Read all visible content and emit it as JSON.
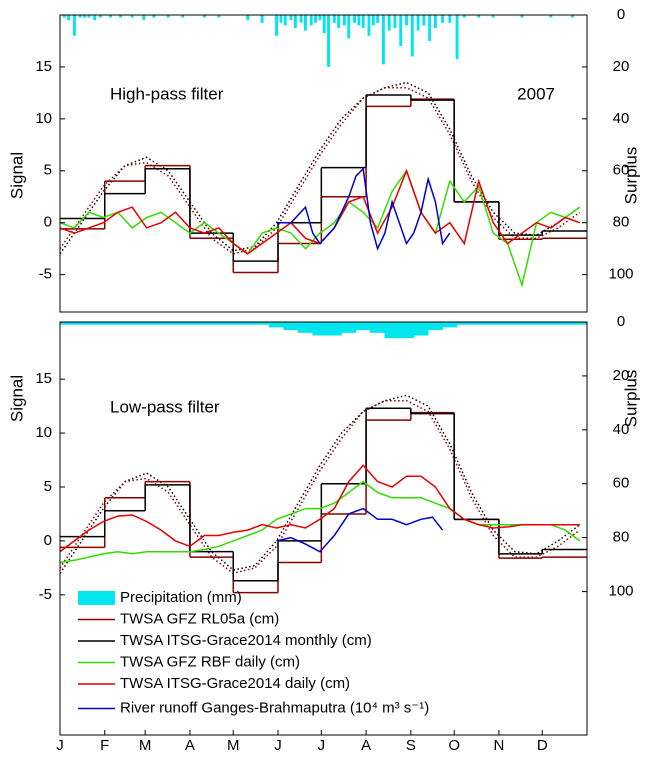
{
  "chart_data": [
    {
      "type": "line",
      "annotations": [
        "High-pass filter",
        "2007"
      ],
      "y_label": "Signal",
      "y2_label": "Surplus",
      "xlim": [
        0,
        365
      ],
      "ylim": [
        -8.6,
        20
      ],
      "yticks": [
        -5,
        0,
        5,
        10,
        15
      ],
      "y2lim": [
        0,
        114.4
      ],
      "y2_reversed": true,
      "y2ticks": [
        0,
        20,
        40,
        60,
        80,
        100
      ],
      "series": [
        {
          "style": "bar",
          "axis": "y2",
          "color": "#00e5ee",
          "x": [
            3,
            6,
            10,
            14,
            17,
            20,
            24,
            28,
            35,
            42,
            50,
            58,
            65,
            75,
            85,
            100,
            110,
            130,
            140,
            150,
            153,
            156,
            160,
            163,
            167,
            170,
            174,
            177,
            180,
            183,
            186,
            190,
            193,
            197,
            200,
            204,
            207,
            210,
            214,
            217,
            220,
            224,
            228,
            232,
            236,
            240,
            244,
            248,
            252,
            256,
            260,
            265,
            270,
            275,
            280,
            290,
            300,
            320,
            340,
            355
          ],
          "values": [
            1,
            2,
            8,
            1,
            1,
            1,
            2,
            1,
            1,
            1,
            1,
            2,
            1,
            1,
            1,
            1,
            1,
            2,
            3,
            8,
            3,
            4,
            2,
            5,
            3,
            6,
            4,
            3,
            2,
            7,
            20,
            3,
            5,
            4,
            9,
            3,
            4,
            5,
            8,
            4,
            3,
            19,
            6,
            5,
            12,
            4,
            16,
            6,
            4,
            10,
            5,
            3,
            3,
            17,
            1,
            1,
            1,
            1,
            1,
            1
          ]
        },
        {
          "style": "dotted",
          "color": "#000000",
          "x": [
            0,
            15,
            30,
            45,
            60,
            75,
            90,
            105,
            120,
            135,
            150,
            165,
            180,
            195,
            210,
            225,
            240,
            255,
            270,
            285,
            300,
            315,
            330,
            345,
            360
          ],
          "values": [
            -3,
            0,
            3,
            5.5,
            6.3,
            5,
            2,
            -1,
            -2.7,
            -2.3,
            0,
            3.5,
            7,
            10,
            12,
            13,
            13.5,
            12.5,
            9,
            4.5,
            1,
            -1,
            -1.2,
            0,
            1.5
          ]
        },
        {
          "style": "dotted",
          "color": "#8b0000",
          "x": [
            0,
            15,
            30,
            45,
            60,
            75,
            90,
            105,
            120,
            135,
            150,
            165,
            180,
            195,
            210,
            225,
            240,
            255,
            270,
            285,
            300,
            315,
            330,
            345,
            360
          ],
          "values": [
            -2.5,
            0.5,
            3.5,
            5.5,
            5.8,
            4.5,
            1.5,
            -1.5,
            -3,
            -2.5,
            -0.5,
            3,
            6.5,
            9.5,
            12,
            13,
            13,
            12,
            8.5,
            4,
            0.5,
            -1.5,
            -1.5,
            -0.5,
            1
          ]
        },
        {
          "style": "step",
          "color": "#8b0000",
          "x": [
            0,
            31,
            59,
            90,
            120,
            151,
            181,
            212,
            243,
            273,
            304,
            334
          ],
          "values": [
            -0.6,
            4,
            5.5,
            -1.5,
            -4.8,
            -2,
            2.5,
            11.2,
            11.9,
            2,
            -1.6,
            -1.5
          ]
        },
        {
          "style": "step",
          "color": "#000000",
          "x": [
            0,
            31,
            59,
            90,
            120,
            151,
            181,
            212,
            243,
            273,
            304,
            334
          ],
          "values": [
            0.4,
            2.8,
            5.2,
            -1,
            -3.7,
            0,
            5.3,
            12.3,
            11.8,
            2,
            -1.2,
            -0.8
          ]
        },
        {
          "style": "line",
          "color": "#33dd00",
          "x": [
            0,
            10,
            20,
            30,
            40,
            50,
            60,
            70,
            80,
            90,
            100,
            110,
            120,
            130,
            140,
            150,
            160,
            170,
            180,
            190,
            200,
            210,
            220,
            230,
            240,
            250,
            260,
            270,
            280,
            290,
            300,
            310,
            320,
            330,
            340,
            350,
            360
          ],
          "values": [
            0,
            -0.5,
            1,
            0.5,
            1,
            -0.5,
            0.5,
            1,
            0,
            -1,
            0,
            -1,
            -2,
            -3,
            -1,
            -0.5,
            -1,
            -2.5,
            -1,
            0,
            2,
            1,
            -0.5,
            3,
            5,
            1,
            -1,
            4,
            2,
            3.5,
            -1,
            -2,
            -6,
            0,
            1,
            0.5,
            1.5
          ]
        },
        {
          "style": "line",
          "color": "#e60000",
          "x": [
            0,
            10,
            20,
            30,
            40,
            50,
            60,
            70,
            80,
            90,
            100,
            110,
            120,
            130,
            140,
            150,
            160,
            170,
            180,
            190,
            200,
            210,
            220,
            230,
            240,
            250,
            260,
            270,
            280,
            290,
            300,
            310,
            320,
            330,
            340,
            350,
            360
          ],
          "values": [
            -0.5,
            -1,
            -0.5,
            0,
            1,
            1.5,
            -0.5,
            0,
            1,
            -0.5,
            -1,
            -0.5,
            -2,
            -3,
            -2,
            -1,
            0,
            -1.5,
            -2,
            -0.5,
            2,
            2.5,
            -1,
            1.5,
            5,
            1,
            -1,
            0,
            -2,
            4,
            0,
            -2,
            -1,
            0,
            -0.5,
            0.5,
            0
          ]
        },
        {
          "style": "line",
          "color": "#0000cc",
          "x": [
            150,
            160,
            170,
            175,
            180,
            190,
            200,
            205,
            210,
            215,
            220,
            225,
            230,
            240,
            245,
            250,
            255,
            260,
            265,
            270
          ],
          "values": [
            0,
            0,
            1.5,
            -1,
            -2,
            -0.5,
            2.5,
            4.5,
            5.2,
            0,
            -2.5,
            -1,
            2,
            -2,
            -1,
            1,
            4.2,
            2,
            -2,
            -1
          ]
        }
      ]
    },
    {
      "type": "line",
      "annotations": [
        "Low-pass filter"
      ],
      "y_label": "Signal",
      "y2_label": "Surplus",
      "xlim": [
        0,
        365
      ],
      "ylim": [
        -18,
        20.3
      ],
      "yticks": [
        -5,
        0,
        5,
        10,
        15
      ],
      "y2lim": [
        0,
        153.2
      ],
      "y2_reversed": true,
      "y2ticks": [
        0,
        20,
        40,
        60,
        80,
        100
      ],
      "xticks": [
        {
          "value": 0,
          "label": "J"
        },
        {
          "value": 31,
          "label": "F"
        },
        {
          "value": 59,
          "label": "M"
        },
        {
          "value": 90,
          "label": "A"
        },
        {
          "value": 120,
          "label": "M"
        },
        {
          "value": 151,
          "label": "J"
        },
        {
          "value": 181,
          "label": "J"
        },
        {
          "value": 212,
          "label": "A"
        },
        {
          "value": 243,
          "label": "S"
        },
        {
          "value": 273,
          "label": "O"
        },
        {
          "value": 304,
          "label": "N"
        },
        {
          "value": 334,
          "label": "D"
        }
      ],
      "legend": "lower left",
      "series": [
        {
          "name": "Precipitation (mm)",
          "style": "bar",
          "axis": "y2",
          "color": "#00e5ee",
          "x": [
            0,
            10,
            20,
            30,
            40,
            50,
            60,
            70,
            80,
            90,
            100,
            110,
            120,
            130,
            140,
            150,
            160,
            170,
            180,
            190,
            200,
            210,
            220,
            230,
            240,
            250,
            260,
            270,
            280,
            290,
            300,
            310,
            320,
            330,
            340,
            350,
            360
          ],
          "values": [
            1,
            1,
            1,
            1,
            1,
            1,
            1,
            1,
            1,
            1,
            1,
            1,
            1,
            1,
            1,
            2,
            3,
            4,
            5,
            5,
            4,
            3,
            4,
            6,
            6,
            5,
            3,
            2,
            1,
            1,
            1,
            1,
            1,
            1,
            1,
            1,
            1
          ]
        },
        {
          "name": "TWSA GFZ RL05a (cm)",
          "style": "step",
          "color": "#8b0000",
          "x": [
            0,
            31,
            59,
            90,
            120,
            151,
            181,
            212,
            243,
            273,
            304,
            334
          ],
          "values": [
            -0.6,
            4,
            5.5,
            -1.5,
            -4.8,
            -2,
            2.5,
            11.2,
            11.9,
            2,
            -1.6,
            -1.5
          ]
        },
        {
          "name": "TWSA ITSG-Grace2014 monthly (cm)",
          "style": "step",
          "color": "#000000",
          "x": [
            0,
            31,
            59,
            90,
            120,
            151,
            181,
            212,
            243,
            273,
            304,
            334
          ],
          "values": [
            0.4,
            2.8,
            5.2,
            -1,
            -3.7,
            0,
            5.3,
            12.3,
            11.8,
            2,
            -1.2,
            -0.8
          ]
        },
        {
          "name": "TWSA GFZ RBF daily (cm)",
          "style": "line",
          "color": "#33dd00",
          "x": [
            0,
            10,
            20,
            30,
            40,
            50,
            60,
            70,
            80,
            90,
            100,
            110,
            120,
            130,
            140,
            150,
            160,
            170,
            180,
            190,
            200,
            210,
            220,
            230,
            240,
            250,
            260,
            270,
            280,
            290,
            300,
            310,
            320,
            330,
            340,
            350,
            360
          ],
          "values": [
            -2,
            -1.8,
            -1.5,
            -1.2,
            -1,
            -1.2,
            -1,
            -1,
            -1,
            -1,
            -0.8,
            -0.5,
            0,
            0.5,
            1,
            2,
            2.5,
            3,
            3,
            3.5,
            4.5,
            5.5,
            4.5,
            4,
            4,
            4,
            3.5,
            3,
            2,
            1.5,
            1.5,
            1.5,
            1.5,
            1.5,
            1.5,
            1,
            0
          ]
        },
        {
          "name": "TWSA ITSG-Grace2014 daily (cm)",
          "style": "line",
          "color": "#e60000",
          "x": [
            0,
            10,
            20,
            30,
            40,
            50,
            60,
            70,
            80,
            90,
            100,
            110,
            120,
            130,
            140,
            150,
            160,
            170,
            180,
            190,
            200,
            210,
            220,
            230,
            240,
            250,
            260,
            270,
            280,
            290,
            300,
            310,
            320,
            330,
            340,
            350,
            360
          ],
          "values": [
            -1,
            0,
            1,
            1.8,
            2.3,
            2.4,
            1.8,
            1,
            0,
            -0.5,
            0.5,
            0.5,
            0.8,
            1,
            1.5,
            1.2,
            1.5,
            1.2,
            2,
            3,
            5.5,
            7,
            5.5,
            5,
            6,
            6,
            5,
            3,
            2,
            1.5,
            1.2,
            1.3,
            1.5,
            1.5,
            1.5,
            1.5,
            1.5
          ]
        },
        {
          "name": "River runoff Ganges-Brahmaputra (10⁴ m³ s⁻¹)",
          "style": "line",
          "color": "#0000cc",
          "x": [
            150,
            160,
            170,
            180,
            190,
            200,
            210,
            215,
            220,
            230,
            240,
            250,
            258,
            265
          ],
          "values": [
            0,
            0.3,
            -0.3,
            -1,
            0.5,
            2.5,
            3,
            2.5,
            2,
            2,
            1.5,
            2,
            2.2,
            1
          ]
        },
        {
          "style": "dotted",
          "color": "#000000",
          "x": [
            0,
            15,
            30,
            45,
            60,
            75,
            90,
            105,
            120,
            135,
            150,
            165,
            180,
            195,
            210,
            225,
            240,
            255,
            270,
            285,
            300,
            315,
            330,
            345,
            360
          ],
          "values": [
            -3,
            0,
            3,
            5.5,
            6.3,
            5,
            2,
            -1,
            -2.7,
            -2.3,
            0,
            3.5,
            7,
            10,
            12,
            13,
            13.5,
            12.5,
            9,
            4.5,
            1,
            -1,
            -1.2,
            0,
            1.5
          ]
        },
        {
          "style": "dotted",
          "color": "#8b0000",
          "x": [
            0,
            15,
            30,
            45,
            60,
            75,
            90,
            105,
            120,
            135,
            150,
            165,
            180,
            195,
            210,
            225,
            240,
            255,
            270,
            285,
            300,
            315,
            330,
            345,
            360
          ],
          "values": [
            -2.5,
            0.5,
            3.5,
            5.5,
            5.8,
            4.5,
            1.5,
            -1.5,
            -3,
            -2.5,
            -0.5,
            3,
            6.5,
            9.5,
            12,
            13,
            13,
            12,
            8.5,
            4,
            0.5,
            -1.5,
            -1.5,
            -0.5,
            1
          ]
        }
      ]
    }
  ]
}
